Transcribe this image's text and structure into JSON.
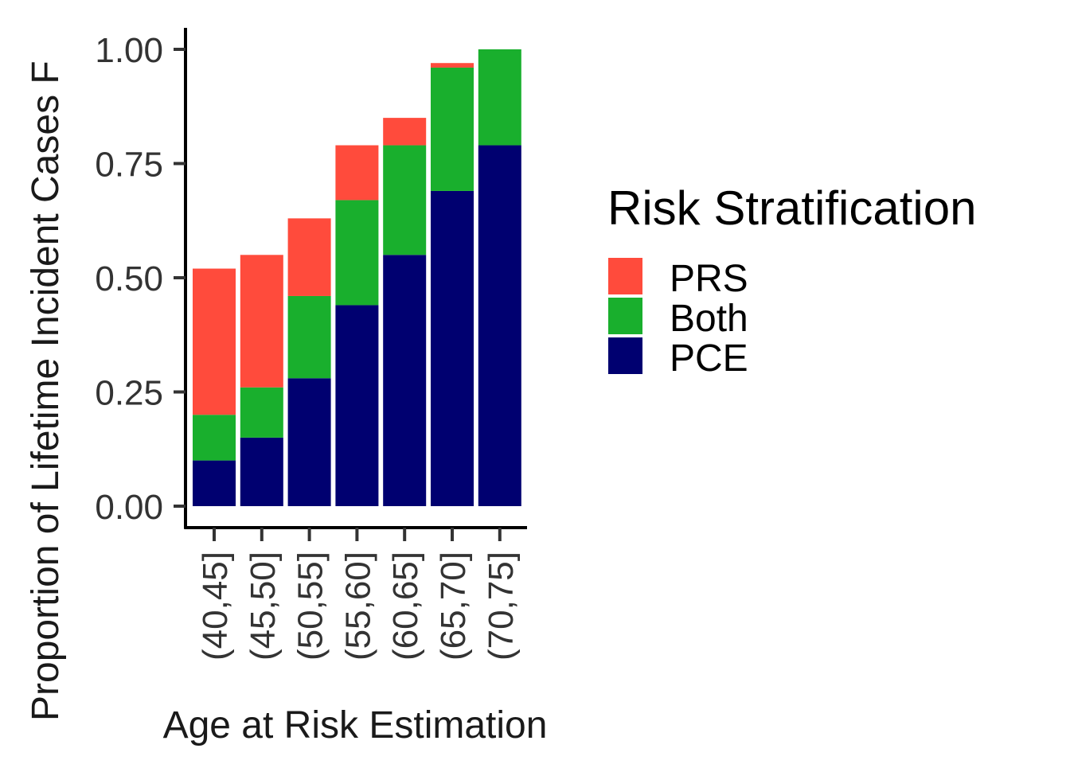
{
  "chart_data": {
    "type": "bar",
    "stacked": true,
    "title": "",
    "xlabel": "Age at Risk Estimation",
    "ylabel": "Proportion of Lifetime Incident Cases F",
    "ylim": [
      0,
      1
    ],
    "yticks": [
      "0.00",
      "0.25",
      "0.50",
      "0.75",
      "1.00"
    ],
    "categories": [
      "(40,45]",
      "(45,50]",
      "(50,55]",
      "(55,60]",
      "(60,65]",
      "(65,70]",
      "(70,75]"
    ],
    "series": [
      {
        "name": "PCE",
        "color": "#000070",
        "values": [
          0.1,
          0.15,
          0.28,
          0.44,
          0.55,
          0.69,
          0.79
        ]
      },
      {
        "name": "Both",
        "color": "#19AF2D",
        "values": [
          0.1,
          0.11,
          0.18,
          0.23,
          0.24,
          0.27,
          0.21
        ]
      },
      {
        "name": "PRS",
        "color": "#FF4B3C",
        "values": [
          0.32,
          0.29,
          0.17,
          0.12,
          0.06,
          0.01,
          0.0
        ]
      }
    ],
    "legend": {
      "title": "Risk Stratification",
      "position": "right",
      "order": [
        "PRS",
        "Both",
        "PCE"
      ]
    },
    "grid": false
  }
}
